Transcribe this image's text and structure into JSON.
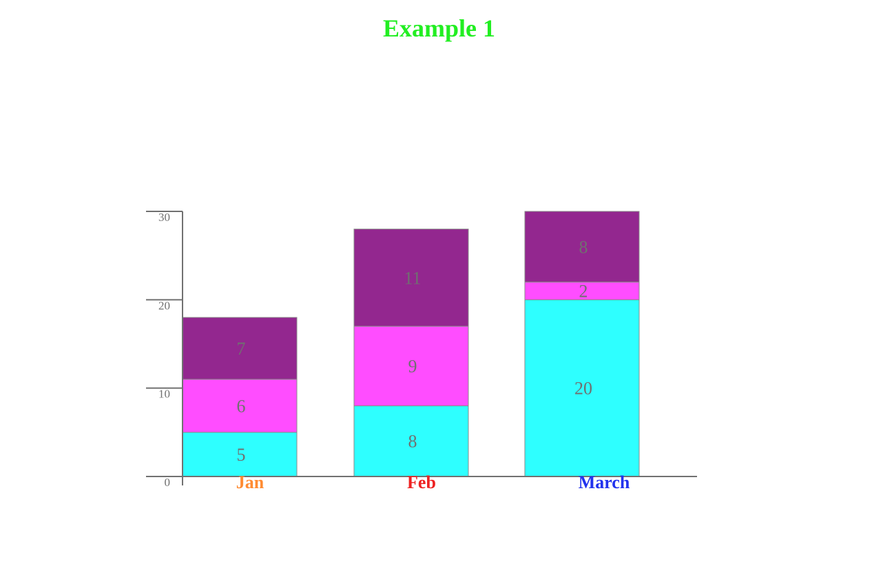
{
  "chart_data": {
    "type": "bar",
    "stacked": true,
    "title": "Example 1",
    "title_color": "#22ee22",
    "categories": [
      "Jan",
      "Feb",
      "March"
    ],
    "category_colors": [
      "#ff8c33",
      "#ee2222",
      "#2233ee"
    ],
    "series": [
      {
        "color": "#2effff",
        "values": [
          5,
          8,
          20
        ]
      },
      {
        "color": "#ff4dff",
        "values": [
          6,
          9,
          2
        ]
      },
      {
        "color": "#93278f",
        "values": [
          7,
          11,
          8
        ]
      }
    ],
    "y_ticks": [
      0,
      10,
      20,
      30
    ],
    "ylim": [
      0,
      30
    ],
    "axis_color": "#707070",
    "label_color": "#707070"
  }
}
